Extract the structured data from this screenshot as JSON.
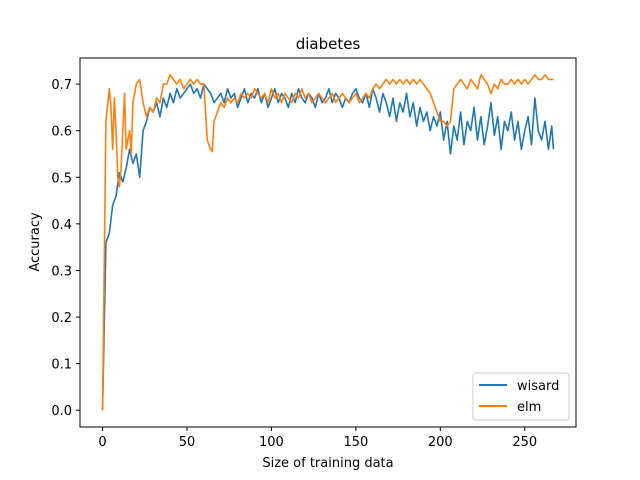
{
  "chart_data": {
    "type": "line",
    "title": "diabetes",
    "xlabel": "Size of training data",
    "ylabel": "Accuracy",
    "xlim": [
      -13.35,
      280.35
    ],
    "ylim": [
      -0.036,
      0.756
    ],
    "xticks": [
      0,
      50,
      100,
      150,
      200,
      250
    ],
    "yticks": [
      0.0,
      0.1,
      0.2,
      0.3,
      0.4,
      0.5,
      0.6,
      0.7
    ],
    "ytick_labels": [
      "0.0",
      "0.1",
      "0.2",
      "0.3",
      "0.4",
      "0.5",
      "0.6",
      "0.7"
    ],
    "legend_position": "lower-right",
    "grid": false,
    "series": [
      {
        "name": "wisard",
        "color": "#1f77b4",
        "x": [
          0,
          2,
          4,
          6,
          8,
          10,
          12,
          14,
          16,
          18,
          20,
          22,
          24,
          26,
          28,
          30,
          32,
          34,
          36,
          38,
          40,
          42,
          44,
          46,
          48,
          50,
          52,
          54,
          56,
          58,
          60,
          62,
          64,
          66,
          68,
          70,
          72,
          74,
          76,
          78,
          80,
          82,
          84,
          86,
          88,
          90,
          92,
          94,
          96,
          98,
          100,
          102,
          104,
          106,
          108,
          110,
          112,
          114,
          116,
          118,
          120,
          122,
          124,
          126,
          128,
          130,
          132,
          134,
          136,
          138,
          140,
          142,
          144,
          146,
          148,
          150,
          152,
          154,
          156,
          158,
          160,
          162,
          164,
          166,
          168,
          170,
          172,
          174,
          176,
          178,
          180,
          182,
          184,
          186,
          188,
          190,
          192,
          194,
          196,
          198,
          200,
          202,
          204,
          206,
          208,
          210,
          212,
          214,
          216,
          218,
          220,
          222,
          224,
          226,
          228,
          230,
          232,
          234,
          236,
          238,
          240,
          242,
          244,
          246,
          248,
          250,
          252,
          254,
          256,
          258,
          260,
          262,
          264,
          266,
          267
        ],
        "y": [
          0.0,
          0.36,
          0.38,
          0.44,
          0.46,
          0.51,
          0.49,
          0.52,
          0.56,
          0.53,
          0.55,
          0.5,
          0.6,
          0.62,
          0.65,
          0.64,
          0.66,
          0.63,
          0.67,
          0.65,
          0.68,
          0.66,
          0.69,
          0.67,
          0.68,
          0.69,
          0.7,
          0.68,
          0.69,
          0.67,
          0.7,
          0.69,
          0.68,
          0.66,
          0.67,
          0.68,
          0.66,
          0.69,
          0.67,
          0.68,
          0.65,
          0.67,
          0.69,
          0.66,
          0.68,
          0.67,
          0.69,
          0.66,
          0.68,
          0.65,
          0.67,
          0.69,
          0.66,
          0.68,
          0.67,
          0.65,
          0.68,
          0.66,
          0.69,
          0.67,
          0.66,
          0.68,
          0.67,
          0.65,
          0.68,
          0.66,
          0.67,
          0.69,
          0.66,
          0.68,
          0.67,
          0.65,
          0.67,
          0.66,
          0.68,
          0.69,
          0.67,
          0.66,
          0.68,
          0.65,
          0.69,
          0.67,
          0.64,
          0.68,
          0.66,
          0.63,
          0.67,
          0.62,
          0.66,
          0.64,
          0.68,
          0.63,
          0.66,
          0.61,
          0.65,
          0.62,
          0.64,
          0.6,
          0.63,
          0.61,
          0.64,
          0.58,
          0.62,
          0.55,
          0.61,
          0.58,
          0.64,
          0.57,
          0.62,
          0.6,
          0.65,
          0.58,
          0.63,
          0.57,
          0.61,
          0.66,
          0.59,
          0.63,
          0.56,
          0.62,
          0.6,
          0.64,
          0.58,
          0.62,
          0.56,
          0.6,
          0.63,
          0.57,
          0.67,
          0.6,
          0.58,
          0.62,
          0.56,
          0.61,
          0.56
        ]
      },
      {
        "name": "elm",
        "color": "#ff7f0e",
        "x": [
          0,
          2,
          4,
          5,
          6,
          7,
          8,
          9,
          10,
          11,
          12,
          13,
          14,
          16,
          17,
          18,
          20,
          22,
          24,
          26,
          28,
          30,
          32,
          34,
          36,
          38,
          40,
          42,
          44,
          46,
          48,
          50,
          52,
          54,
          56,
          58,
          60,
          62,
          64,
          65,
          66,
          68,
          70,
          72,
          74,
          76,
          78,
          80,
          82,
          84,
          86,
          88,
          90,
          92,
          94,
          96,
          98,
          100,
          102,
          104,
          106,
          108,
          110,
          112,
          114,
          116,
          118,
          120,
          122,
          124,
          126,
          128,
          130,
          132,
          134,
          136,
          138,
          140,
          142,
          144,
          146,
          148,
          150,
          152,
          154,
          156,
          158,
          160,
          162,
          164,
          166,
          168,
          170,
          172,
          174,
          176,
          178,
          180,
          182,
          184,
          186,
          188,
          190,
          192,
          194,
          196,
          198,
          200,
          202,
          204,
          206,
          208,
          210,
          212,
          214,
          216,
          218,
          220,
          222,
          224,
          226,
          228,
          230,
          232,
          234,
          236,
          238,
          240,
          242,
          244,
          246,
          248,
          250,
          252,
          254,
          256,
          258,
          260,
          262,
          264,
          266,
          267
        ],
        "y": [
          0.0,
          0.62,
          0.69,
          0.65,
          0.56,
          0.67,
          0.6,
          0.5,
          0.48,
          0.52,
          0.6,
          0.68,
          0.56,
          0.6,
          0.55,
          0.66,
          0.7,
          0.71,
          0.66,
          0.63,
          0.65,
          0.64,
          0.67,
          0.66,
          0.7,
          0.7,
          0.72,
          0.71,
          0.7,
          0.71,
          0.69,
          0.7,
          0.71,
          0.7,
          0.71,
          0.7,
          0.7,
          0.58,
          0.56,
          0.555,
          0.62,
          0.64,
          0.66,
          0.65,
          0.67,
          0.66,
          0.67,
          0.66,
          0.68,
          0.67,
          0.68,
          0.67,
          0.69,
          0.68,
          0.67,
          0.68,
          0.66,
          0.69,
          0.67,
          0.68,
          0.66,
          0.68,
          0.67,
          0.66,
          0.68,
          0.67,
          0.69,
          0.67,
          0.68,
          0.66,
          0.67,
          0.68,
          0.67,
          0.66,
          0.67,
          0.68,
          0.66,
          0.67,
          0.68,
          0.67,
          0.66,
          0.67,
          0.68,
          0.66,
          0.67,
          0.68,
          0.67,
          0.69,
          0.7,
          0.69,
          0.7,
          0.71,
          0.7,
          0.71,
          0.7,
          0.71,
          0.7,
          0.71,
          0.7,
          0.71,
          0.7,
          0.71,
          0.7,
          0.69,
          0.68,
          0.66,
          0.64,
          0.62,
          0.62,
          0.61,
          0.62,
          0.69,
          0.7,
          0.71,
          0.7,
          0.69,
          0.71,
          0.7,
          0.69,
          0.72,
          0.71,
          0.7,
          0.68,
          0.7,
          0.69,
          0.71,
          0.7,
          0.7,
          0.71,
          0.7,
          0.71,
          0.7,
          0.71,
          0.7,
          0.71,
          0.72,
          0.71,
          0.71,
          0.72,
          0.71,
          0.71,
          0.71
        ]
      }
    ]
  }
}
